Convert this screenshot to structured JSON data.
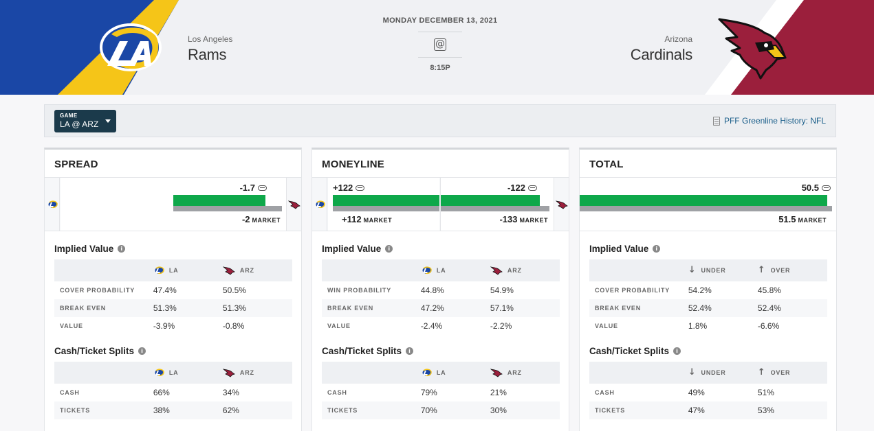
{
  "header": {
    "date": "MONDAY DECEMBER 13, 2021",
    "at_symbol": "@",
    "time": "8:15P",
    "home": {
      "city": "Los Angeles",
      "name": "Rams",
      "logo": "rams-logo",
      "color": "#1a47a6",
      "accent": "#f5c518"
    },
    "away": {
      "city": "Arizona",
      "name": "Cardinals",
      "logo": "cardinals-logo",
      "color": "#9b1f3c"
    }
  },
  "filter": {
    "game_label": "GAME",
    "game_value": "LA @ ARZ",
    "history_link": "PFF Greenline History: NFL"
  },
  "colors": {
    "greenline": "#0ea84a",
    "market": "#9fa1a5"
  },
  "cards": {
    "spread": {
      "title": "SPREAD",
      "greenline": "-1.7",
      "market": "-2",
      "market_label": "MARKET",
      "implied_title": "Implied Value",
      "implied_headers": [
        "LA",
        "ARZ"
      ],
      "implied_rows": [
        {
          "label": "COVER PROBABILITY",
          "a": "47.4%",
          "b": "50.5%"
        },
        {
          "label": "BREAK EVEN",
          "a": "51.3%",
          "b": "51.3%"
        },
        {
          "label": "VALUE",
          "a": "-3.9%",
          "b": "-0.8%"
        }
      ],
      "splits_title": "Cash/Ticket Splits",
      "splits_headers": [
        "LA",
        "ARZ"
      ],
      "splits_rows": [
        {
          "label": "CASH",
          "a": "66%",
          "b": "34%"
        },
        {
          "label": "TICKETS",
          "a": "38%",
          "b": "62%"
        }
      ]
    },
    "moneyline": {
      "title": "MONEYLINE",
      "greenline_home": "+122",
      "greenline_away": "-122",
      "market_home": "+112",
      "market_away": "-133",
      "market_label": "MARKET",
      "implied_title": "Implied Value",
      "implied_headers": [
        "LA",
        "ARZ"
      ],
      "implied_rows": [
        {
          "label": "WIN PROBABILITY",
          "a": "44.8%",
          "b": "54.9%"
        },
        {
          "label": "BREAK EVEN",
          "a": "47.2%",
          "b": "57.1%"
        },
        {
          "label": "VALUE",
          "a": "-2.4%",
          "b": "-2.2%"
        }
      ],
      "splits_title": "Cash/Ticket Splits",
      "splits_headers": [
        "LA",
        "ARZ"
      ],
      "splits_rows": [
        {
          "label": "CASH",
          "a": "79%",
          "b": "21%"
        },
        {
          "label": "TICKETS",
          "a": "70%",
          "b": "30%"
        }
      ]
    },
    "total": {
      "title": "TOTAL",
      "greenline": "50.5",
      "market": "51.5",
      "market_label": "MARKET",
      "implied_title": "Implied Value",
      "implied_headers": [
        "UNDER",
        "OVER"
      ],
      "implied_rows": [
        {
          "label": "COVER PROBABILITY",
          "a": "54.2%",
          "b": "45.8%"
        },
        {
          "label": "BREAK EVEN",
          "a": "52.4%",
          "b": "52.4%"
        },
        {
          "label": "VALUE",
          "a": "1.8%",
          "b": "-6.6%"
        }
      ],
      "splits_title": "Cash/Ticket Splits",
      "splits_headers": [
        "UNDER",
        "OVER"
      ],
      "splits_rows": [
        {
          "label": "CASH",
          "a": "49%",
          "b": "51%"
        },
        {
          "label": "TICKETS",
          "a": "47%",
          "b": "53%"
        }
      ]
    }
  }
}
